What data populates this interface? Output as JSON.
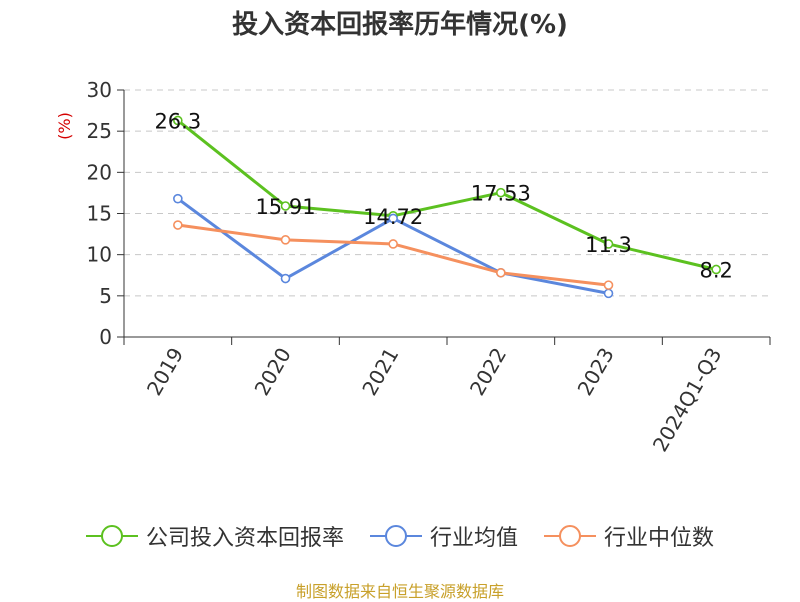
{
  "title": "投入资本回报率历年情况(%)",
  "source": "制图数据来自恒生聚源数据库",
  "chart_data": {
    "type": "line",
    "title": "投入资本回报率历年情况(%)",
    "ylabel": "(%)",
    "xlabel": "",
    "categories": [
      "2019",
      "2020",
      "2021",
      "2022",
      "2023",
      "2024Q1-Q3"
    ],
    "ylim": [
      0,
      30
    ],
    "yticks": [
      0,
      5,
      10,
      15,
      20,
      25,
      30
    ],
    "grid": true,
    "legend_position": "bottom",
    "series": [
      {
        "name": "公司投入资本回报率",
        "color": "#5cc120",
        "values": [
          26.3,
          15.91,
          14.72,
          17.53,
          11.3,
          8.2
        ],
        "labels": [
          "26.3",
          "15.91",
          "14.72",
          "17.53",
          "11.3",
          "8.2"
        ]
      },
      {
        "name": "行业均值",
        "color": "#5b87dd",
        "values": [
          16.8,
          7.1,
          14.4,
          7.8,
          5.3,
          null
        ]
      },
      {
        "name": "行业中位数",
        "color": "#f5905e",
        "values": [
          13.6,
          11.8,
          11.3,
          7.8,
          6.3,
          null
        ]
      }
    ]
  }
}
